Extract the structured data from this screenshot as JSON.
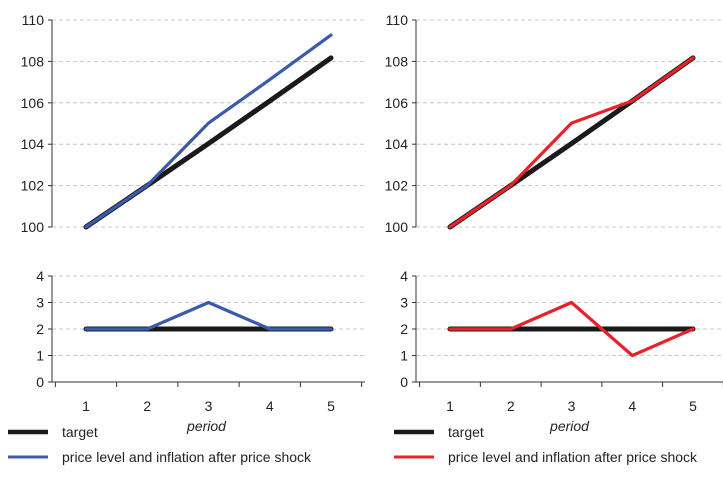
{
  "chart_data": [
    {
      "type": "line",
      "panel": "left-top",
      "x": [
        1,
        2,
        3,
        4,
        5
      ],
      "ylim": [
        100,
        110
      ],
      "yticks": [
        "100",
        "102",
        "104",
        "106",
        "108",
        "110"
      ],
      "grid": true,
      "series": [
        {
          "name": "target",
          "color": "#1a1a1a",
          "values": [
            100,
            102.01,
            104.03,
            106.09,
            108.17
          ]
        },
        {
          "name": "price level and inflation after price shock",
          "color": "#3a5bab",
          "values": [
            100,
            102.01,
            105.02,
            107.12,
            109.27
          ]
        }
      ]
    },
    {
      "type": "line",
      "panel": "left-bottom",
      "x": [
        1,
        2,
        3,
        4,
        5
      ],
      "ylim": [
        0,
        4
      ],
      "yticks": [
        "0",
        "1",
        "2",
        "3",
        "4"
      ],
      "xticks": [
        "1",
        "2",
        "3",
        "4",
        "5"
      ],
      "xlabel": "period",
      "grid": true,
      "series": [
        {
          "name": "target",
          "color": "#1a1a1a",
          "values": [
            2,
            2,
            2,
            2,
            2
          ]
        },
        {
          "name": "price level and inflation after price shock",
          "color": "#3a5bab",
          "values": [
            2,
            2,
            3,
            2,
            2
          ]
        }
      ]
    },
    {
      "type": "line",
      "panel": "right-top",
      "x": [
        1,
        2,
        3,
        4,
        5
      ],
      "ylim": [
        100,
        110
      ],
      "yticks": [
        "100",
        "102",
        "104",
        "106",
        "108",
        "110"
      ],
      "grid": true,
      "series": [
        {
          "name": "target",
          "color": "#1a1a1a",
          "values": [
            100,
            102.01,
            104.03,
            106.09,
            108.17
          ]
        },
        {
          "name": "price level and inflation after price shock",
          "color": "#e8212b",
          "values": [
            100,
            102.01,
            105.02,
            106.09,
            108.17
          ]
        }
      ]
    },
    {
      "type": "line",
      "panel": "right-bottom",
      "x": [
        1,
        2,
        3,
        4,
        5
      ],
      "ylim": [
        0,
        4
      ],
      "yticks": [
        "0",
        "1",
        "2",
        "3",
        "4"
      ],
      "xticks": [
        "1",
        "2",
        "3",
        "4",
        "5"
      ],
      "xlabel": "period",
      "grid": true,
      "series": [
        {
          "name": "target",
          "color": "#1a1a1a",
          "values": [
            2,
            2,
            2,
            2,
            2
          ]
        },
        {
          "name": "price level and inflation after price shock",
          "color": "#e8212b",
          "values": [
            2,
            2,
            3,
            1,
            2
          ]
        }
      ]
    }
  ],
  "legends": [
    {
      "panel": "left",
      "items": [
        {
          "label": "target",
          "color": "#1a1a1a"
        },
        {
          "label": "price level and inflation after price shock",
          "color": "#3a5bab"
        }
      ]
    },
    {
      "panel": "right",
      "items": [
        {
          "label": "target",
          "color": "#1a1a1a"
        },
        {
          "label": "price level and inflation after price shock",
          "color": "#e8212b"
        }
      ]
    }
  ]
}
